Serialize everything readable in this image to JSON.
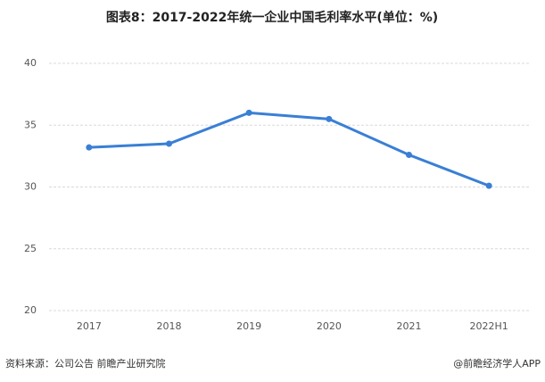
{
  "chart_data": {
    "type": "line",
    "title": "图表8：2017-2022年统一企业中国毛利率水平(单位：%)",
    "categories": [
      "2017",
      "2018",
      "2019",
      "2020",
      "2021",
      "2022H1"
    ],
    "series": [
      {
        "name": "毛利率",
        "color": "#3a7fd5",
        "values": [
          33.2,
          33.5,
          36.0,
          35.5,
          32.6,
          30.1
        ]
      }
    ],
    "ylim": [
      20,
      40
    ],
    "yticks": [
      20,
      25,
      30,
      35,
      40
    ],
    "grid": true,
    "source": "资料来源：公司公告 前瞻产业研究院",
    "credit": "@前瞻经济学人APP"
  }
}
